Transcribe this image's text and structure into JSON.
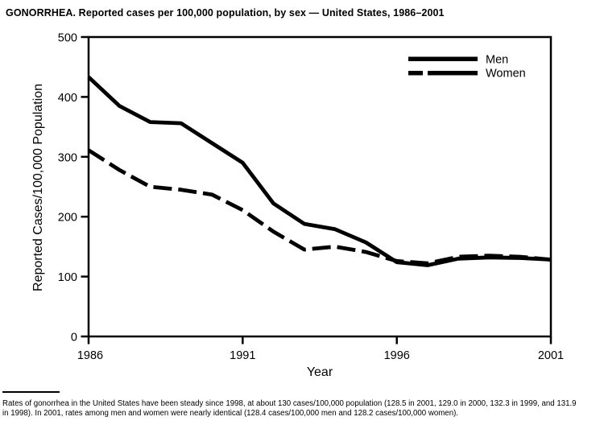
{
  "title": "GONORRHEA. Reported cases per 100,000 population, by sex — United States, 1986–2001",
  "chart_data": {
    "type": "line",
    "title": "GONORRHEA. Reported cases per 100,000 population, by sex — United States, 1986–2001",
    "xlabel": "Year",
    "ylabel": "Reported Cases/100,000 Population",
    "xlim": [
      1986,
      2001
    ],
    "ylim": [
      0,
      500
    ],
    "xticks": [
      "1986",
      "1991",
      "1996",
      "2001"
    ],
    "yticks": [
      "0",
      "100",
      "200",
      "300",
      "400",
      "500"
    ],
    "grid": false,
    "legend_position": "top-right",
    "background_color": "#ffffff",
    "line_color": "#000000",
    "x": [
      1986,
      1987,
      1988,
      1989,
      1990,
      1991,
      1992,
      1993,
      1994,
      1995,
      1996,
      1997,
      1998,
      1999,
      2000,
      2001
    ],
    "series": [
      {
        "name": "Men",
        "style": "solid",
        "values": [
          433,
          385,
          358,
          356,
          323,
          290,
          222,
          188,
          179,
          157,
          124,
          119,
          130,
          132,
          131,
          128.4
        ]
      },
      {
        "name": "Women",
        "style": "dashed",
        "values": [
          311,
          278,
          250,
          245,
          237,
          211,
          175,
          145,
          150,
          141,
          126,
          122,
          133,
          135,
          133,
          128.2
        ]
      }
    ]
  },
  "footnote": {
    "line1": "Rates of gonorrhea in the United States have been steady since 1998, at about 130 cases/100,000 population (128.5 in 2001, 129.0 in 2000, 132.3 in 1999, and 131.9",
    "line2": "in 1998). In 2001, rates among men and women were nearly identical (128.4 cases/100,000 men and 128.2 cases/100,000 women)."
  }
}
